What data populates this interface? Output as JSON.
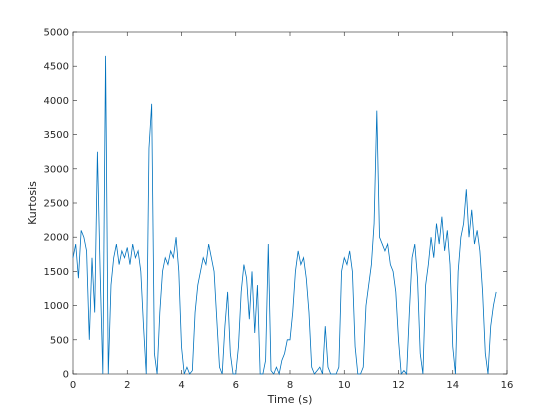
{
  "chart_data": {
    "type": "line",
    "xlabel": "Time (s)",
    "ylabel": "Kurtosis",
    "x": [
      0.0,
      0.1,
      0.2,
      0.3,
      0.4,
      0.5,
      0.6,
      0.7,
      0.8,
      0.9,
      1.0,
      1.1,
      1.2,
      1.3,
      1.4,
      1.5,
      1.6,
      1.7,
      1.8,
      1.9,
      2.0,
      2.1,
      2.2,
      2.3,
      2.4,
      2.5,
      2.6,
      2.7,
      2.8,
      2.9,
      3.0,
      3.1,
      3.2,
      3.3,
      3.4,
      3.5,
      3.6,
      3.7,
      3.8,
      3.9,
      4.0,
      4.1,
      4.2,
      4.3,
      4.4,
      4.5,
      4.6,
      4.7,
      4.8,
      4.9,
      5.0,
      5.1,
      5.2,
      5.3,
      5.4,
      5.5,
      5.6,
      5.7,
      5.8,
      5.9,
      6.0,
      6.1,
      6.2,
      6.3,
      6.4,
      6.5,
      6.6,
      6.7,
      6.8,
      6.9,
      7.0,
      7.1,
      7.2,
      7.3,
      7.4,
      7.5,
      7.6,
      7.7,
      7.8,
      7.9,
      8.0,
      8.1,
      8.2,
      8.3,
      8.4,
      8.5,
      8.6,
      8.7,
      8.8,
      8.9,
      9.0,
      9.1,
      9.2,
      9.3,
      9.4,
      9.5,
      9.6,
      9.7,
      9.8,
      9.9,
      10.0,
      10.1,
      10.2,
      10.3,
      10.4,
      10.5,
      10.6,
      10.7,
      10.8,
      10.9,
      11.0,
      11.1,
      11.2,
      11.3,
      11.4,
      11.5,
      11.6,
      11.7,
      11.8,
      11.9,
      12.0,
      12.1,
      12.2,
      12.3,
      12.4,
      12.5,
      12.6,
      12.7,
      12.8,
      12.9,
      13.0,
      13.1,
      13.2,
      13.3,
      13.4,
      13.5,
      13.6,
      13.7,
      13.8,
      13.9,
      14.0,
      14.1,
      14.2,
      14.3,
      14.4,
      14.5,
      14.6,
      14.7,
      14.8,
      14.9,
      15.0,
      15.1,
      15.2,
      15.3,
      15.4,
      15.5,
      15.6
    ],
    "series": [
      {
        "color": "#0072bd",
        "values": [
          1700,
          1900,
          1400,
          2100,
          2000,
          1800,
          500,
          1700,
          900,
          3250,
          1500,
          0,
          4650,
          0,
          1300,
          1700,
          1900,
          1600,
          1800,
          1700,
          1850,
          1600,
          1900,
          1700,
          1800,
          1500,
          700,
          0,
          3300,
          3950,
          300,
          0,
          900,
          1500,
          1700,
          1600,
          1800,
          1700,
          2000,
          1500,
          400,
          0,
          100,
          0,
          50,
          900,
          1300,
          1500,
          1700,
          1600,
          1900,
          1700,
          1500,
          800,
          100,
          0,
          700,
          1200,
          300,
          0,
          0,
          400,
          1200,
          1600,
          1400,
          800,
          1500,
          600,
          1300,
          0,
          0,
          200,
          1900,
          50,
          0,
          100,
          0,
          200,
          300,
          500,
          500,
          900,
          1500,
          1800,
          1600,
          1700,
          1400,
          900,
          100,
          0,
          50,
          100,
          0,
          700,
          100,
          0,
          0,
          0,
          100,
          1500,
          1700,
          1600,
          1800,
          1500,
          400,
          0,
          0,
          100,
          1000,
          1300,
          1600,
          2200,
          3850,
          2000,
          1900,
          1800,
          1900,
          1600,
          1500,
          1200,
          500,
          0,
          50,
          0,
          900,
          1700,
          1900,
          1400,
          300,
          0,
          1300,
          1600,
          2000,
          1700,
          2200,
          1900,
          2300,
          1800,
          2100,
          1600,
          400,
          0,
          1500,
          2000,
          2200,
          2700,
          2000,
          2400,
          1900,
          2100,
          1800,
          1200,
          300,
          0,
          700,
          1000,
          1200
        ]
      }
    ],
    "xlim": [
      0,
      16
    ],
    "xticks": [
      0,
      2,
      4,
      6,
      8,
      10,
      12,
      14,
      16
    ],
    "ylim": [
      0,
      5000
    ],
    "yticks": [
      0,
      500,
      1000,
      1500,
      2000,
      2500,
      3000,
      3500,
      4000,
      4500,
      5000
    ],
    "grid": false
  }
}
